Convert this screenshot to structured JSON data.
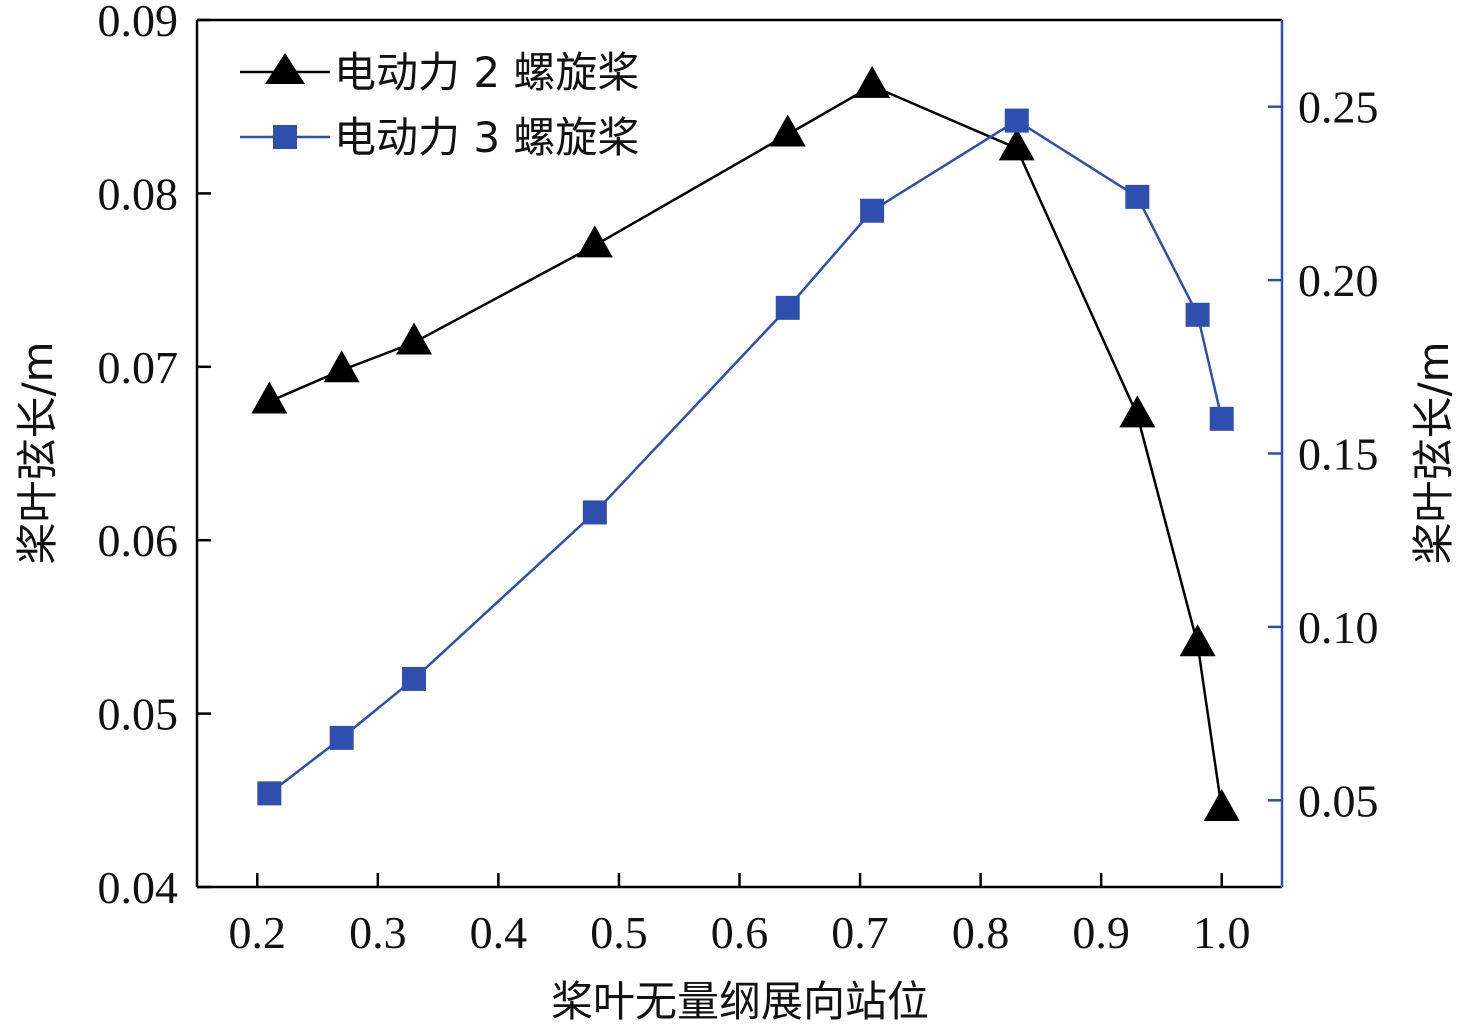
{
  "chart_data": {
    "type": "line",
    "xlabel": "桨叶无量纲展向站位",
    "ylabel_left": "桨叶弦长/m",
    "ylabel_right": "桨叶弦长/m",
    "xlim": [
      0.15,
      1.05
    ],
    "ylim_left": [
      0.04,
      0.09
    ],
    "ylim_right": [
      0.025,
      0.275
    ],
    "x_ticks": [
      0.2,
      0.3,
      0.4,
      0.5,
      0.6,
      0.7,
      0.8,
      0.9,
      1.0
    ],
    "x_tick_labels": [
      "0.2",
      "0.3",
      "0.4",
      "0.5",
      "0.6",
      "0.7",
      "0.8",
      "0.9",
      "1.0"
    ],
    "y_left_ticks": [
      0.04,
      0.05,
      0.06,
      0.07,
      0.08,
      0.09
    ],
    "y_left_tick_labels": [
      "0.04",
      "0.05",
      "0.06",
      "0.07",
      "0.08",
      "0.09"
    ],
    "y_right_ticks": [
      0.05,
      0.1,
      0.15,
      0.2,
      0.25
    ],
    "y_right_tick_labels": [
      "0.05",
      "0.10",
      "0.15",
      "0.20",
      "0.25"
    ],
    "legend_position": "top-left",
    "grid": false,
    "series": [
      {
        "name": "电动力 2 螺旋桨",
        "axis": "left",
        "marker": "triangle",
        "color": "#000000",
        "x": [
          0.21,
          0.27,
          0.33,
          0.48,
          0.64,
          0.71,
          0.83,
          0.93,
          0.98,
          1.0
        ],
        "y": [
          0.068,
          0.0698,
          0.0714,
          0.077,
          0.0834,
          0.0862,
          0.0826,
          0.0672,
          0.054,
          0.0445
        ]
      },
      {
        "name": "电动力 3 螺旋桨",
        "axis": "right",
        "marker": "square",
        "color": "#2e4fad",
        "x": [
          0.21,
          0.27,
          0.33,
          0.48,
          0.64,
          0.71,
          0.83,
          0.93,
          0.98,
          1.0
        ],
        "y": [
          0.052,
          0.068,
          0.085,
          0.133,
          0.192,
          0.22,
          0.246,
          0.224,
          0.19,
          0.16
        ]
      }
    ]
  }
}
